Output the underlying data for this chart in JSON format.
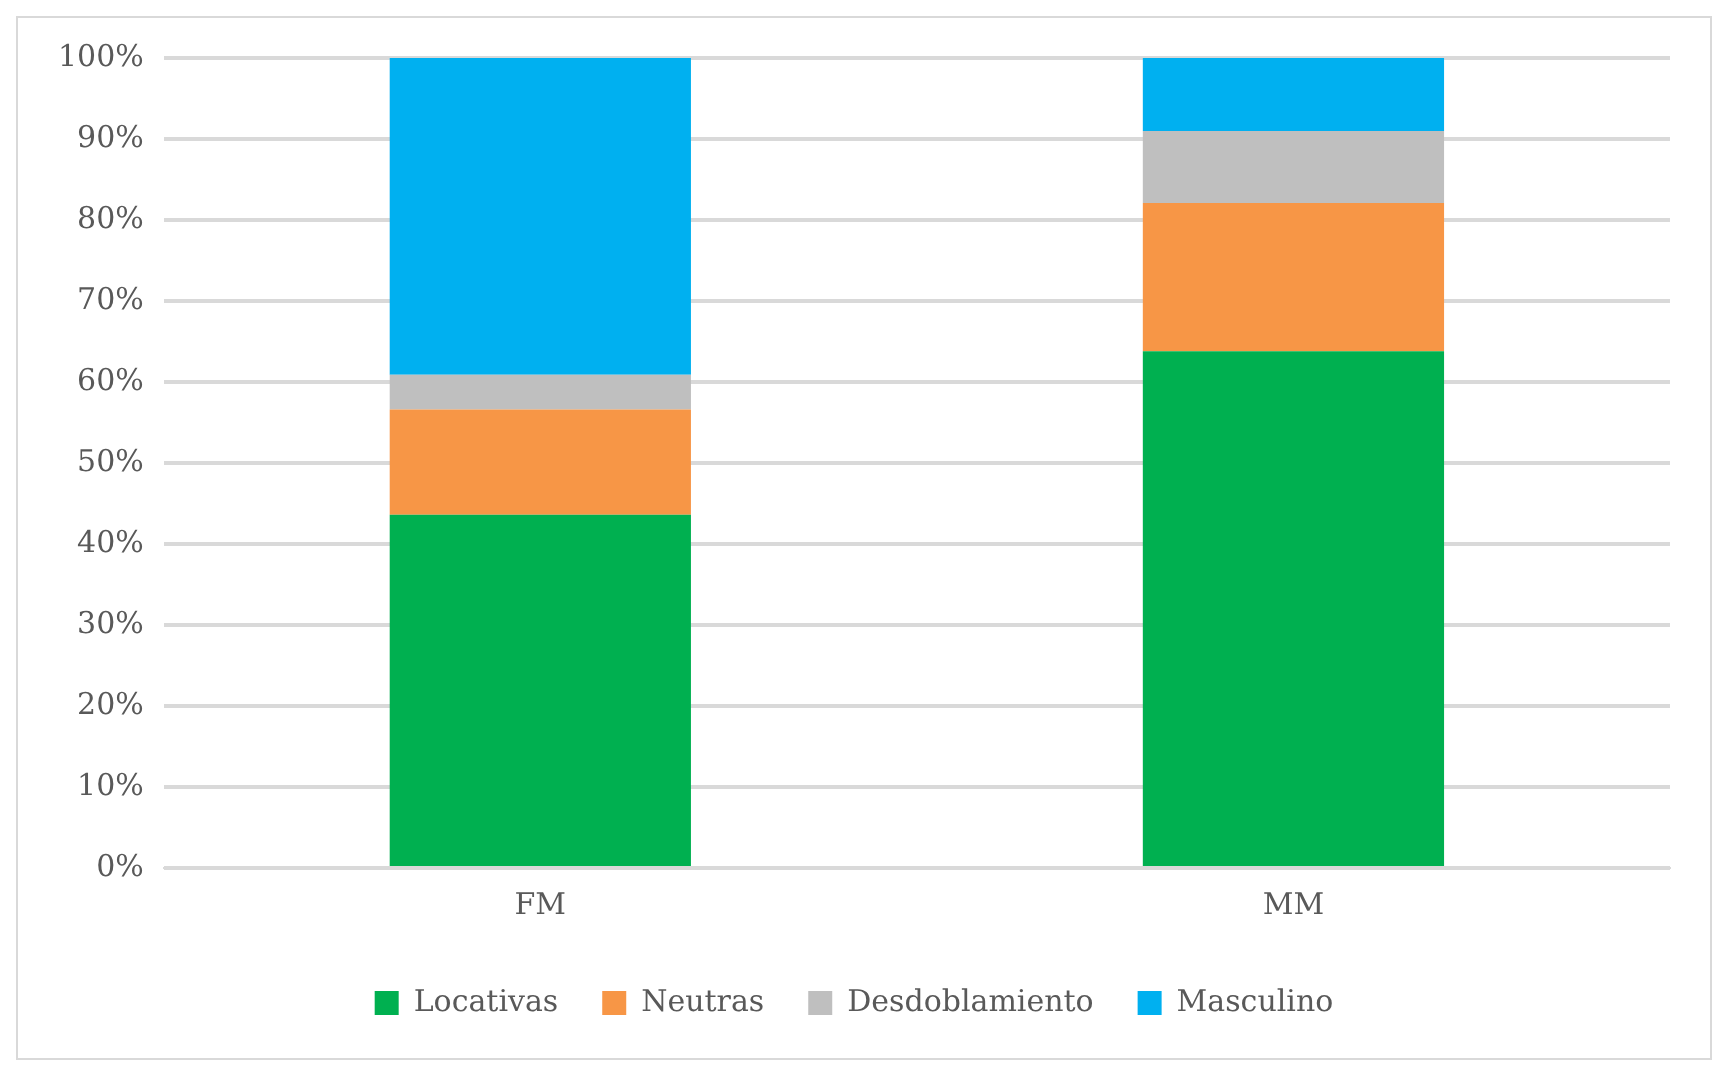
{
  "chart_data": {
    "type": "bar",
    "stacked": true,
    "categories": [
      "FM",
      "MM"
    ],
    "series": [
      {
        "name": "Locativas",
        "color": "#00b050",
        "values": [
          43.6,
          63.8
        ]
      },
      {
        "name": "Neutras",
        "color": "#f79646",
        "values": [
          13.0,
          18.3
        ]
      },
      {
        "name": "Desdoblamiento",
        "color": "#bfbfbf",
        "values": [
          4.3,
          8.9
        ]
      },
      {
        "name": "Masculino",
        "color": "#00b0f0",
        "values": [
          39.1,
          9.0
        ]
      }
    ],
    "ylim": [
      0,
      100
    ],
    "yticks": [
      {
        "value": 0,
        "label": "0%"
      },
      {
        "value": 10,
        "label": "10%"
      },
      {
        "value": 20,
        "label": "20%"
      },
      {
        "value": 30,
        "label": "30%"
      },
      {
        "value": 40,
        "label": "40%"
      },
      {
        "value": 50,
        "label": "50%"
      },
      {
        "value": 60,
        "label": "60%"
      },
      {
        "value": 70,
        "label": "70%"
      },
      {
        "value": 80,
        "label": "80%"
      },
      {
        "value": 90,
        "label": "90%"
      },
      {
        "value": 100,
        "label": "100%"
      }
    ],
    "grid": "y",
    "legend": "bottom"
  }
}
